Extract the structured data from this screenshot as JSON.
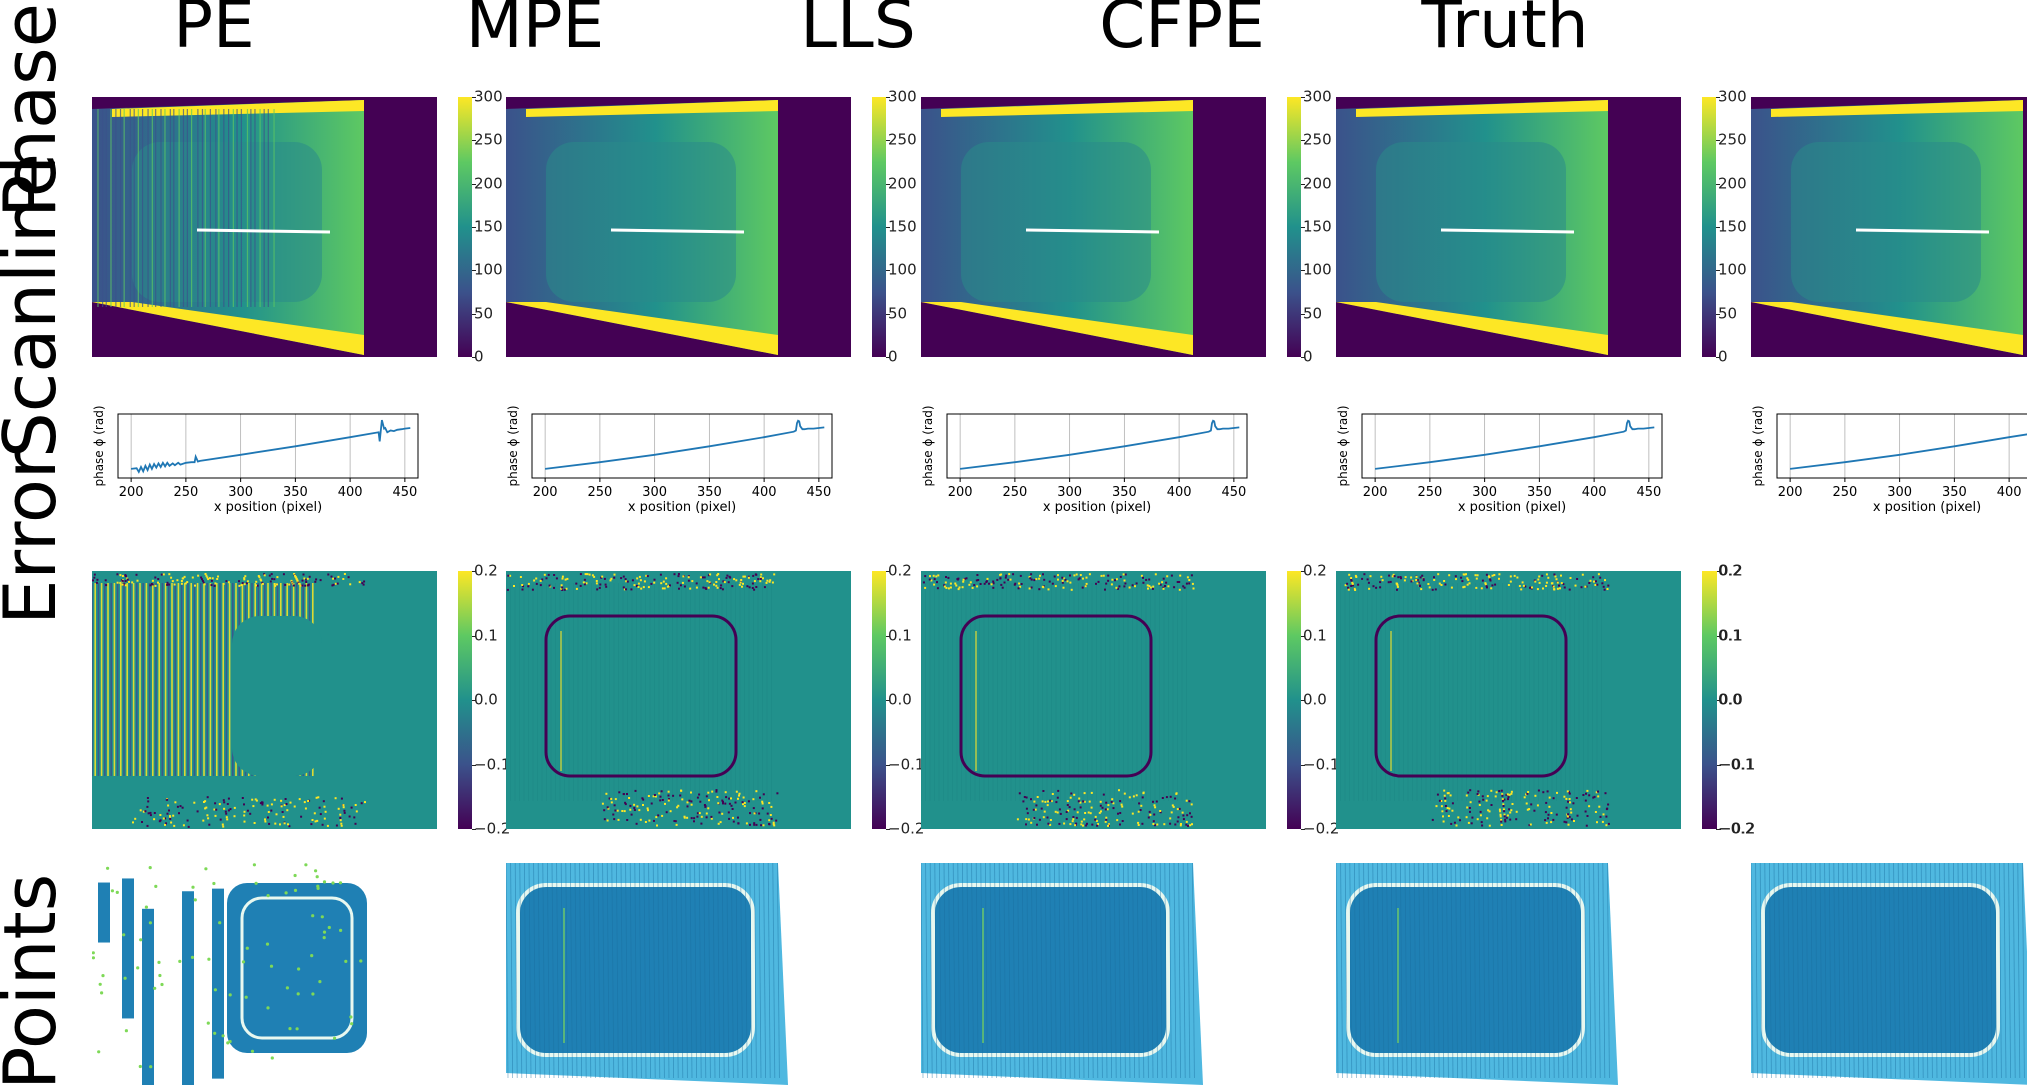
{
  "columns": [
    "PE",
    "MPE",
    "LLS",
    "CFPE",
    "Truth"
  ],
  "row_labels": [
    "Phase",
    "Scanline",
    "Error",
    "Points"
  ],
  "colormap": "viridis",
  "colors": {
    "viridis_low": "#440154",
    "viridis_mid": "#21918c",
    "viridis_high": "#fde725",
    "scanline": "#1f77b4",
    "points_base": "#1f80b4",
    "points_light": "#4fb8e0"
  },
  "phase_colorbar": {
    "ticks": [
      "0",
      "50",
      "100",
      "150",
      "200",
      "250",
      "300"
    ],
    "range": [
      0,
      300
    ]
  },
  "error_colorbar": {
    "ticks": [
      "−0.2",
      "−0.1",
      "0.0",
      "0.1",
      "0.2"
    ],
    "range": [
      -0.25,
      0.25
    ]
  },
  "chart_data": [
    {
      "type": "line",
      "panel": "PE",
      "xlabel": "x position (pixel)",
      "ylabel": "phase ϕ (rad)",
      "xticks": [
        200,
        250,
        300,
        350,
        400,
        450
      ],
      "xlim": [
        188,
        462
      ],
      "grid": true,
      "series": [
        {
          "x": [
            200,
            205,
            207,
            209,
            211,
            213,
            215,
            217,
            219,
            221,
            223,
            225,
            227,
            229,
            231,
            233,
            235,
            238,
            240,
            243,
            245,
            250,
            255,
            258,
            259,
            261,
            263,
            300,
            350,
            400,
            426,
            427,
            428,
            429,
            430,
            431,
            432,
            434,
            437,
            440,
            443,
            447,
            450,
            455
          ],
          "y": [
            55,
            56,
            50,
            58,
            51,
            60,
            53,
            62,
            55,
            63,
            57,
            64,
            58,
            65,
            59,
            65,
            60,
            64,
            61,
            65,
            62,
            65,
            66,
            66,
            75,
            67,
            68,
            78,
            92,
            107,
            115,
            100,
            118,
            135,
            128,
            121,
            122,
            115,
            118,
            117,
            119,
            120,
            121,
            122
          ]
        }
      ]
    },
    {
      "type": "line",
      "panel": "MPE",
      "xlabel": "x position (pixel)",
      "ylabel": "phase ϕ (rad)",
      "xticks": [
        200,
        250,
        300,
        350,
        400,
        450
      ],
      "xlim": [
        188,
        462
      ],
      "grid": true,
      "series": [
        {
          "x": [
            200,
            250,
            300,
            350,
            400,
            427,
            429,
            430,
            431,
            432,
            433,
            435,
            437,
            440,
            445,
            450,
            455
          ],
          "y": [
            55,
            66,
            78,
            92,
            107,
            116,
            118,
            130,
            134,
            133,
            125,
            120,
            120,
            121,
            121,
            122,
            123
          ]
        }
      ]
    },
    {
      "type": "line",
      "panel": "LLS",
      "xlabel": "x position (pixel)",
      "ylabel": "phase ϕ (rad)",
      "xticks": [
        200,
        250,
        300,
        350,
        400,
        450
      ],
      "xlim": [
        188,
        462
      ],
      "grid": true,
      "series": [
        {
          "x": [
            200,
            250,
            300,
            350,
            400,
            427,
            429,
            430,
            431,
            432,
            433,
            435,
            437,
            440,
            445,
            450,
            455
          ],
          "y": [
            55,
            66,
            78,
            92,
            107,
            116,
            118,
            130,
            134,
            133,
            125,
            120,
            120,
            121,
            121,
            122,
            123
          ]
        }
      ]
    },
    {
      "type": "line",
      "panel": "CFPE",
      "xlabel": "x position (pixel)",
      "ylabel": "phase ϕ (rad)",
      "xticks": [
        200,
        250,
        300,
        350,
        400,
        450
      ],
      "xlim": [
        188,
        462
      ],
      "grid": true,
      "series": [
        {
          "x": [
            200,
            250,
            300,
            350,
            400,
            427,
            429,
            430,
            431,
            432,
            433,
            435,
            437,
            440,
            445,
            450,
            455
          ],
          "y": [
            55,
            66,
            78,
            92,
            107,
            116,
            118,
            130,
            134,
            133,
            125,
            120,
            120,
            121,
            121,
            122,
            123
          ]
        }
      ]
    },
    {
      "type": "line",
      "panel": "Truth",
      "xlabel": "x position (pixel)",
      "ylabel": "phase ϕ (rad)",
      "xticks": [
        200,
        250,
        300,
        350,
        400,
        450
      ],
      "xlim": [
        188,
        462
      ],
      "grid": true,
      "series": [
        {
          "x": [
            200,
            250,
            300,
            350,
            400,
            450,
            455
          ],
          "y": [
            55,
            66,
            78,
            92,
            107,
            121,
            122
          ]
        }
      ]
    }
  ]
}
